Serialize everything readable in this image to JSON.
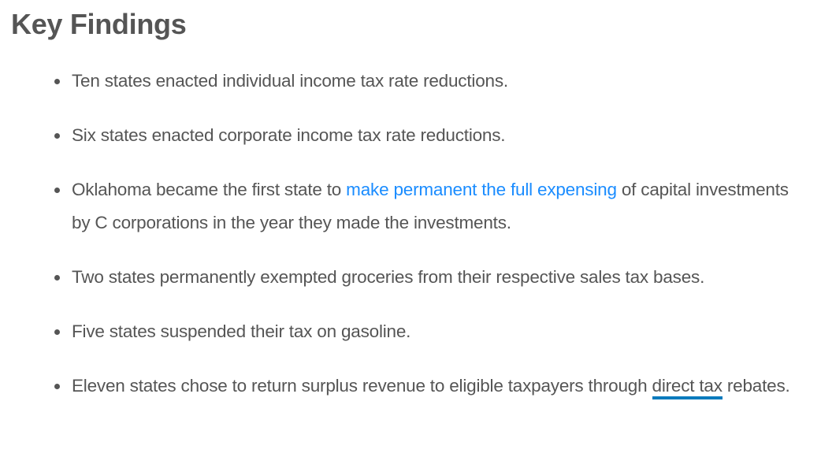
{
  "heading": "Key Findings",
  "findings": [
    {
      "text": "Ten states enacted individual income tax rate reductions."
    },
    {
      "text": "Six states enacted corporate income tax rate reductions."
    },
    {
      "before": "Oklahoma became the first state to ",
      "link": "make permanent the full expensing",
      "after": " of capital investments by C corporations in the year they made the investments."
    },
    {
      "text": "Two states permanently exempted groceries from their respective sales tax bases."
    },
    {
      "text": "Five states suspended their tax on gasoline."
    },
    {
      "before": "Eleven states chose to return surplus revenue to eligible taxpayers through ",
      "link": "direct tax",
      "after": " rebates."
    }
  ],
  "colors": {
    "text": "#555555",
    "link": "#1a8cff",
    "underline": "#0a7bbd"
  }
}
